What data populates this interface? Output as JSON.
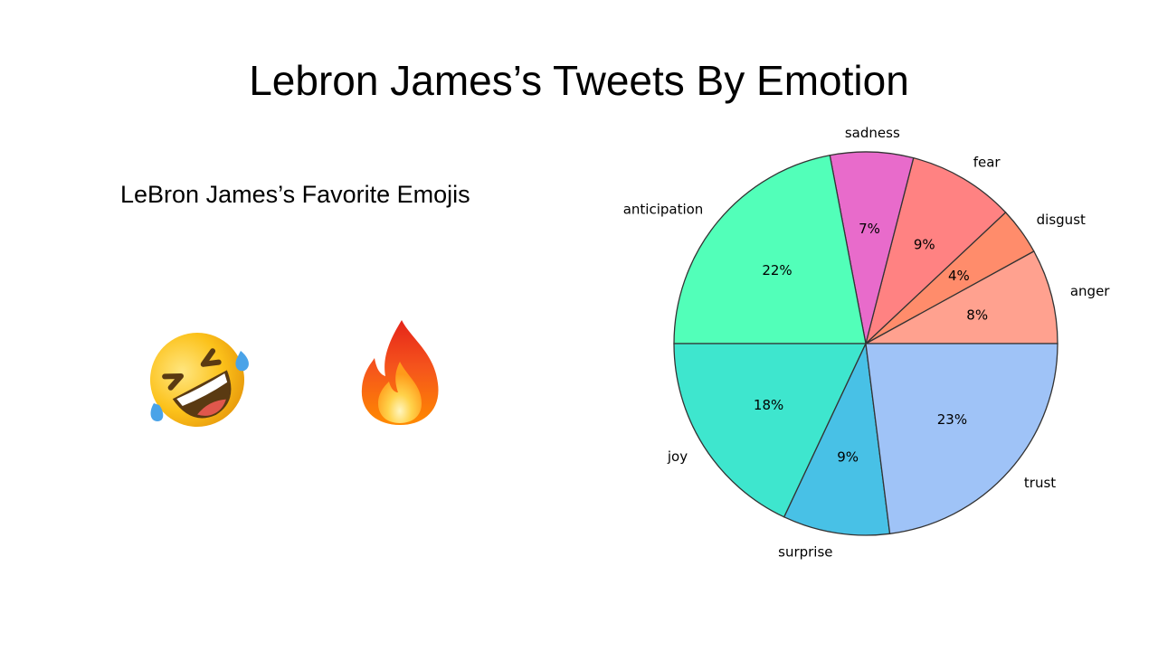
{
  "slide": {
    "title": "Lebron James’s Tweets By Emotion",
    "emoji_heading": "LeBron James’s Favorite Emojis",
    "emojis": [
      "rofl-emoji-icon",
      "fire-emoji-icon"
    ]
  },
  "chart_data": {
    "type": "pie",
    "categories": [
      "anger",
      "disgust",
      "fear",
      "sadness",
      "anticipation",
      "joy",
      "surprise",
      "trust"
    ],
    "values": [
      8,
      4,
      9,
      7,
      22,
      18,
      9,
      23
    ],
    "percent_labels": [
      "8%",
      "4%",
      "9%",
      "7%",
      "22%",
      "18%",
      "9%",
      "23%"
    ],
    "colors": [
      "#ffa18f",
      "#ff8c6b",
      "#ff8282",
      "#e86bcb",
      "#52ffb9",
      "#3ee6ce",
      "#48c1e6",
      "#9fc3f7"
    ],
    "start_angle_deg": 0,
    "direction": "counterclockwise"
  }
}
